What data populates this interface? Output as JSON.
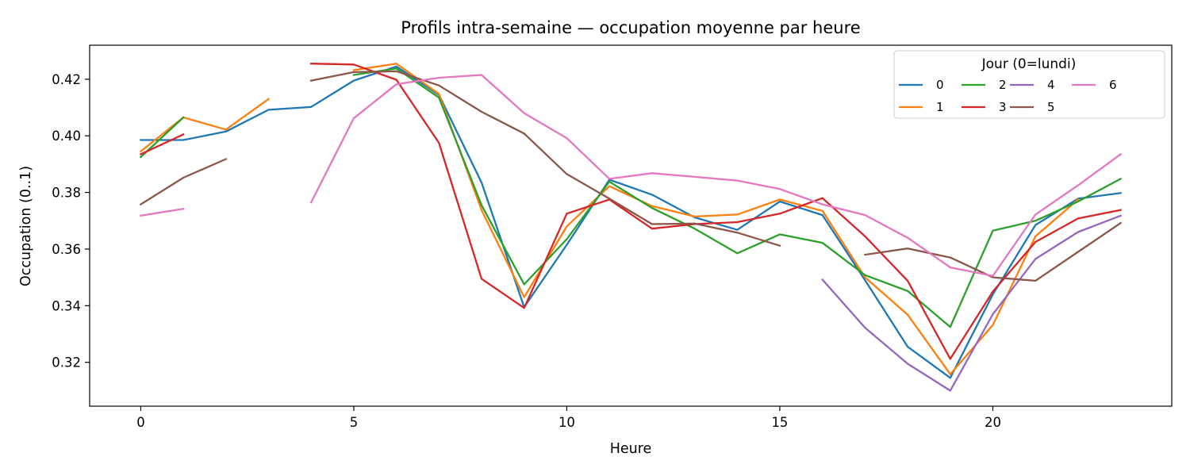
{
  "chart_data": {
    "type": "line",
    "title": "Profils intra-semaine — occupation moyenne par heure",
    "xlabel": "Heure",
    "ylabel": "Occupation (0..1)",
    "xlim": [
      -1.2,
      24.2
    ],
    "ylim": [
      0.3045,
      0.432
    ],
    "xticks": [
      0,
      5,
      10,
      15,
      20
    ],
    "yticks": [
      0.32,
      0.34,
      0.36,
      0.38,
      0.4,
      0.42
    ],
    "ytick_labels": [
      "0.32",
      "0.34",
      "0.36",
      "0.38",
      "0.40",
      "0.42"
    ],
    "grid": false,
    "legend": {
      "title": "Jour (0=lundi)",
      "placement": "top-right",
      "ncol": 4
    },
    "series": [
      {
        "name": "0",
        "color": "#1f77b4",
        "x": [
          0,
          1,
          2,
          3,
          4,
          5,
          6,
          7,
          8,
          9,
          10,
          11,
          12,
          13,
          14,
          15,
          16,
          17,
          18,
          19,
          20,
          21,
          22,
          23
        ],
        "y": [
          0.3985,
          0.3985,
          0.4015,
          0.4092,
          0.4102,
          0.4195,
          0.4245,
          0.4145,
          0.3835,
          0.3395,
          0.3615,
          0.3845,
          0.3792,
          0.3712,
          0.3668,
          0.3768,
          0.372,
          0.349,
          0.3255,
          0.3145,
          0.344,
          0.3685,
          0.3778,
          0.3798
        ]
      },
      {
        "name": "1",
        "color": "#ff7f0e",
        "x": [
          0,
          1,
          2,
          3,
          null,
          5,
          6,
          7,
          8,
          9,
          10,
          11,
          12,
          13,
          14,
          15,
          16,
          17,
          18,
          19,
          20,
          21,
          22,
          23
        ],
        "y": [
          0.3945,
          0.4065,
          0.4022,
          0.413,
          null,
          0.4232,
          0.4255,
          0.4148,
          0.3738,
          0.343,
          0.368,
          0.3822,
          0.3752,
          0.3715,
          0.3722,
          0.3775,
          0.3735,
          0.35,
          0.3368,
          0.3158,
          0.3332,
          0.3645,
          0.3775,
          null
        ]
      },
      {
        "name": "2",
        "color": "#2ca02c",
        "x": [
          0,
          1,
          null,
          5,
          6,
          7,
          8,
          9,
          10,
          11,
          12,
          13,
          14,
          15,
          16,
          17,
          18,
          19,
          20,
          21,
          22,
          23
        ],
        "y": [
          0.3925,
          0.4065,
          null,
          0.4215,
          0.4238,
          0.4135,
          0.3755,
          0.3475,
          0.3635,
          0.3838,
          0.3745,
          0.3672,
          0.3585,
          0.3652,
          0.3622,
          0.3508,
          0.3452,
          0.3325,
          0.3665,
          0.37,
          0.3768,
          0.3848
        ]
      },
      {
        "name": "3",
        "color": "#d62728",
        "x": [
          0,
          1,
          null,
          4,
          5,
          6,
          7,
          8,
          9,
          10,
          11,
          12,
          13,
          14,
          15,
          16,
          17,
          18,
          19,
          20,
          21,
          22,
          23
        ],
        "y": [
          0.3935,
          0.4005,
          null,
          0.4255,
          0.4252,
          0.4198,
          0.3975,
          0.3495,
          0.3392,
          0.3725,
          0.3775,
          0.3672,
          0.3688,
          0.3695,
          0.3725,
          0.378,
          0.3645,
          0.3488,
          0.3212,
          0.345,
          0.3625,
          0.3708,
          0.3738
        ]
      },
      {
        "name": "4",
        "color": "#9467bd",
        "x": [
          16,
          17,
          18,
          19,
          20,
          21,
          22,
          23
        ],
        "y": [
          0.3492,
          0.3322,
          0.3195,
          0.31,
          0.337,
          0.3565,
          0.366,
          0.3718
        ]
      },
      {
        "name": "5",
        "color": "#8c564b",
        "x": [
          0,
          1,
          2,
          null,
          4,
          5,
          6,
          7,
          8,
          9,
          10,
          11,
          12,
          13,
          14,
          15,
          null,
          17,
          18,
          19,
          20,
          21,
          22,
          23
        ],
        "y": [
          0.3758,
          0.3852,
          0.3918,
          null,
          0.4195,
          0.4225,
          0.4228,
          0.4178,
          0.4085,
          0.4008,
          0.3865,
          0.3778,
          0.3688,
          0.369,
          0.3658,
          0.3612,
          null,
          0.358,
          0.3602,
          0.357,
          0.35,
          0.3488,
          0.359,
          0.3692
        ]
      },
      {
        "name": "6",
        "color": "#e377c2",
        "x": [
          0,
          1,
          null,
          4,
          5,
          6,
          7,
          8,
          9,
          10,
          11,
          12,
          13,
          14,
          15,
          16,
          17,
          18,
          19,
          20,
          21,
          22,
          23
        ],
        "y": [
          0.3718,
          0.3742,
          null,
          0.3765,
          0.4062,
          0.4182,
          0.4205,
          0.4215,
          0.408,
          0.3992,
          0.3848,
          0.3868,
          0.3855,
          0.3842,
          0.3812,
          0.3758,
          0.372,
          0.364,
          0.3535,
          0.3505,
          0.3722,
          0.3825,
          0.3935
        ]
      }
    ]
  }
}
